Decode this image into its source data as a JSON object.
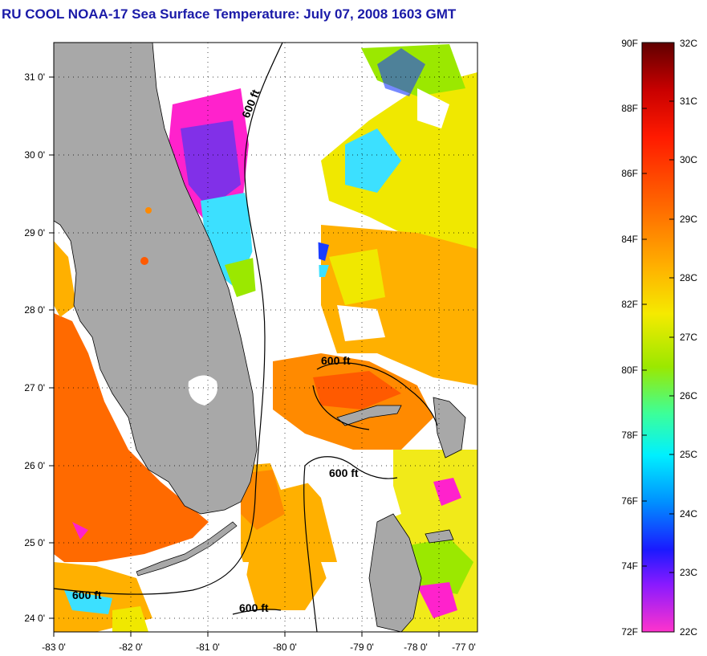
{
  "title": "RU COOL  NOAA-17  Sea Surface Temperature:  July 07, 2008 1603 GMT",
  "map": {
    "lon_ticks": [
      "-83 0'",
      "-82 0'",
      "-81 0'",
      "-80 0'",
      "-79 0'",
      "-78 0'",
      "-77 0'"
    ],
    "lat_ticks": [
      "31 0'",
      "30 0'",
      "29 0'",
      "28 0'",
      "27 0'",
      "26 0'",
      "25 0'",
      "24 0'"
    ],
    "contour_labels": [
      "600 ft",
      "600 ft",
      "600 ft",
      "600 ft",
      "600 ft"
    ]
  },
  "colorbar": {
    "fahrenheit_ticks": [
      "90F",
      "88F",
      "86F",
      "84F",
      "82F",
      "80F",
      "78F",
      "76F",
      "74F",
      "72F"
    ],
    "celsius_ticks": [
      "32C",
      "31C",
      "30C",
      "29C",
      "28C",
      "27C",
      "26C",
      "25C",
      "24C",
      "23C",
      "22C"
    ]
  },
  "colors": {
    "title": "#1a1aa8",
    "land": "#a8a8a8",
    "warm": "#ff6a00",
    "orange": "#ffa800",
    "yellow": "#f0e800",
    "green": "#9be800",
    "cyan": "#3ce0ff",
    "blue": "#1a3cff",
    "magenta": "#ff22cc"
  }
}
